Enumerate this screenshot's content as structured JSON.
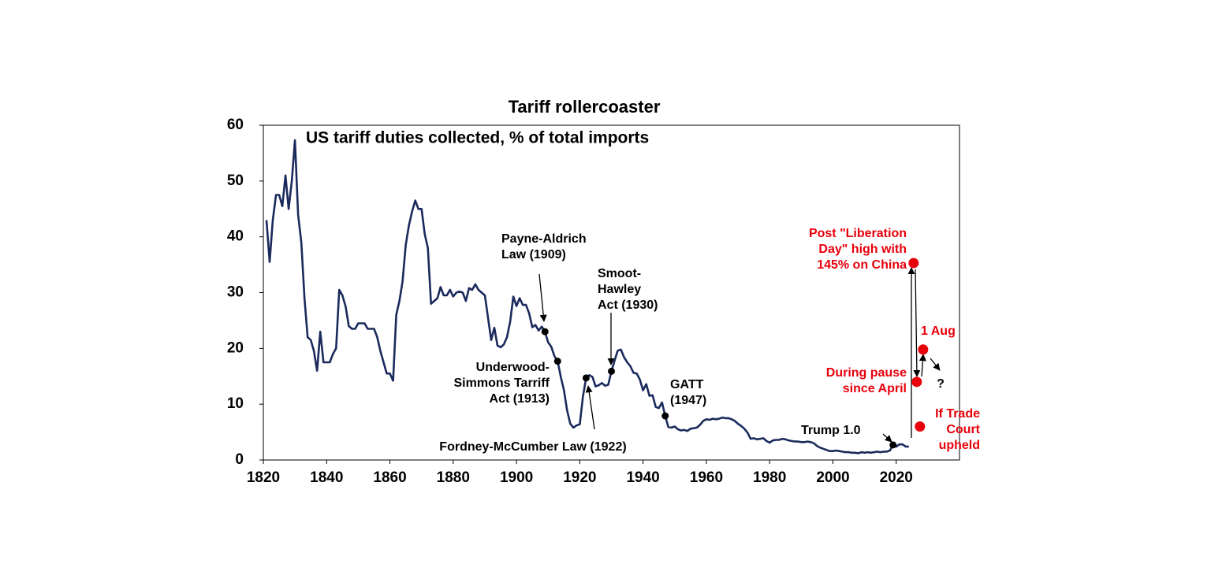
{
  "chart_data": {
    "type": "line",
    "title": "Tariff rollercoaster",
    "subtitle": "US tariff duties collected, % of total imports",
    "color": "#1b2a5c",
    "xlim": [
      1820,
      2040
    ],
    "ylim": [
      0,
      60
    ],
    "xticks": [
      1820,
      1840,
      1860,
      1880,
      1900,
      1920,
      1940,
      1960,
      1980,
      2000,
      2020
    ],
    "yticks": [
      0,
      10,
      20,
      30,
      40,
      50,
      60
    ],
    "x": [
      1821,
      1822,
      1823,
      1824,
      1825,
      1826,
      1827,
      1828,
      1829,
      1830,
      1831,
      1832,
      1833,
      1834,
      1835,
      1836,
      1837,
      1838,
      1839,
      1840,
      1841,
      1842,
      1843,
      1844,
      1845,
      1846,
      1847,
      1848,
      1849,
      1850,
      1851,
      1852,
      1853,
      1854,
      1855,
      1856,
      1857,
      1858,
      1859,
      1860,
      1861,
      1862,
      1863,
      1864,
      1865,
      1866,
      1867,
      1868,
      1869,
      1870,
      1871,
      1872,
      1873,
      1874,
      1875,
      1876,
      1877,
      1878,
      1879,
      1880,
      1881,
      1882,
      1883,
      1884,
      1885,
      1886,
      1887,
      1888,
      1889,
      1890,
      1891,
      1892,
      1893,
      1894,
      1895,
      1896,
      1897,
      1898,
      1899,
      1900,
      1901,
      1902,
      1903,
      1904,
      1905,
      1906,
      1907,
      1908,
      1909,
      1910,
      1911,
      1912,
      1913,
      1914,
      1915,
      1916,
      1917,
      1918,
      1919,
      1920,
      1921,
      1922,
      1923,
      1924,
      1925,
      1926,
      1927,
      1928,
      1929,
      1930,
      1931,
      1932,
      1933,
      1934,
      1935,
      1936,
      1937,
      1938,
      1939,
      1940,
      1941,
      1942,
      1943,
      1944,
      1945,
      1946,
      1947,
      1948,
      1949,
      1950,
      1951,
      1952,
      1953,
      1954,
      1955,
      1956,
      1957,
      1958,
      1959,
      1960,
      1961,
      1962,
      1963,
      1964,
      1965,
      1966,
      1967,
      1968,
      1969,
      1970,
      1971,
      1972,
      1973,
      1974,
      1975,
      1976,
      1977,
      1978,
      1979,
      1980,
      1981,
      1982,
      1983,
      1984,
      1985,
      1986,
      1987,
      1988,
      1989,
      1990,
      1991,
      1992,
      1993,
      1994,
      1995,
      1996,
      1997,
      1998,
      1999,
      2000,
      2001,
      2002,
      2003,
      2004,
      2005,
      2006,
      2007,
      2008,
      2009,
      2010,
      2011,
      2012,
      2013,
      2014,
      2015,
      2016,
      2017,
      2018,
      2019,
      2020,
      2021,
      2022,
      2023,
      2024
    ],
    "values": [
      43,
      35.5,
      43,
      47.5,
      47.5,
      45.5,
      51,
      45,
      50,
      57.3,
      44,
      39,
      29,
      22,
      21.5,
      19.5,
      16,
      23,
      17.5,
      17.5,
      17.5,
      19,
      20,
      30.5,
      29.5,
      27.5,
      24,
      23.5,
      23.5,
      24.5,
      24.5,
      24.5,
      23.5,
      23.5,
      23.5,
      22,
      19.5,
      17.5,
      15.5,
      15.5,
      14.2,
      26,
      28.5,
      32,
      38.5,
      42,
      44.5,
      46.5,
      45,
      45,
      40.5,
      38,
      28,
      28.5,
      29,
      31,
      29.5,
      29.5,
      30.5,
      29.3,
      30,
      30.2,
      30,
      28.5,
      30.8,
      30.5,
      31.5,
      30.5,
      30,
      29.5,
      25.5,
      21.5,
      23.7,
      20.5,
      20.2,
      20.7,
      22,
      24.8,
      29.3,
      27.6,
      29,
      27.8,
      27.8,
      26.3,
      23.8,
      24.2,
      23.2,
      23.9,
      23,
      21.1,
      20.3,
      18.6,
      17.7,
      14.9,
      12.5,
      8.9,
      6.5,
      5.8,
      6.2,
      6.4,
      11.4,
      14.7,
      15.2,
      14.9,
      13.2,
      13.4,
      13.8,
      13.3,
      13.5,
      15.9,
      17.8,
      19.6,
      19.8,
      18.4,
      17.5,
      16.8,
      15.6,
      15.5,
      14.4,
      12.5,
      13.6,
      11.5,
      11.6,
      9.5,
      9.3,
      10.3,
      7.9,
      5.9,
      5.8,
      6,
      5.5,
      5.3,
      5.4,
      5.2,
      5.6,
      5.7,
      5.8,
      6.3,
      7,
      7.3,
      7.2,
      7.4,
      7.3,
      7.4,
      7.6,
      7.5,
      7.5,
      7.3,
      7,
      6.5,
      6.1,
      5.6,
      4.9,
      3.8,
      3.9,
      3.7,
      3.8,
      3.9,
      3.4,
      3.1,
      3.5,
      3.6,
      3.6,
      3.8,
      3.7,
      3.5,
      3.4,
      3.3,
      3.3,
      3.2,
      3.2,
      3.3,
      3.2,
      3,
      2.5,
      2.2,
      2,
      1.8,
      1.6,
      1.6,
      1.7,
      1.6,
      1.5,
      1.4,
      1.4,
      1.3,
      1.3,
      1.2,
      1.4,
      1.3,
      1.4,
      1.3,
      1.4,
      1.5,
      1.4,
      1.5,
      1.5,
      1.7,
      2.7,
      2.4,
      2.8,
      2.8,
      2.4,
      2.4
    ],
    "events": [
      {
        "label": [
          "Payne-Aldrich",
          "Law (1909)"
        ],
        "x": 1909,
        "y": 23
      },
      {
        "label": [
          "Underwood-",
          "Simmons Tarriff",
          "Act (1913)"
        ],
        "x": 1913,
        "y": 17.7
      },
      {
        "label": [
          "Fordney-McCumber Law (1922)"
        ],
        "x": 1922,
        "y": 14.7
      },
      {
        "label": [
          "Smoot-",
          "Hawley",
          "Act (1930)"
        ],
        "x": 1930,
        "y": 15.9
      },
      {
        "label": [
          "GATT",
          "(1947)"
        ],
        "x": 1947,
        "y": 7.9
      },
      {
        "label": [
          "Trump 1.0"
        ],
        "x": 2019,
        "y": 2.7
      }
    ],
    "event_color": "#000000",
    "scenarios": [
      {
        "label": [
          "Post \"Liberation",
          "Day\" high with",
          "145% on China"
        ],
        "x": 2025.5,
        "y": 35.3
      },
      {
        "label": [
          "1 Aug"
        ],
        "x": 2028.5,
        "y": 19.8
      },
      {
        "label": [
          "During pause",
          "since April"
        ],
        "x": 2026.5,
        "y": 14
      },
      {
        "label": [
          "If Trade",
          "Court",
          "upheld"
        ],
        "x": 2027.5,
        "y": 6
      }
    ],
    "scenario_color": "#e8000b",
    "outlook_label": "?"
  }
}
